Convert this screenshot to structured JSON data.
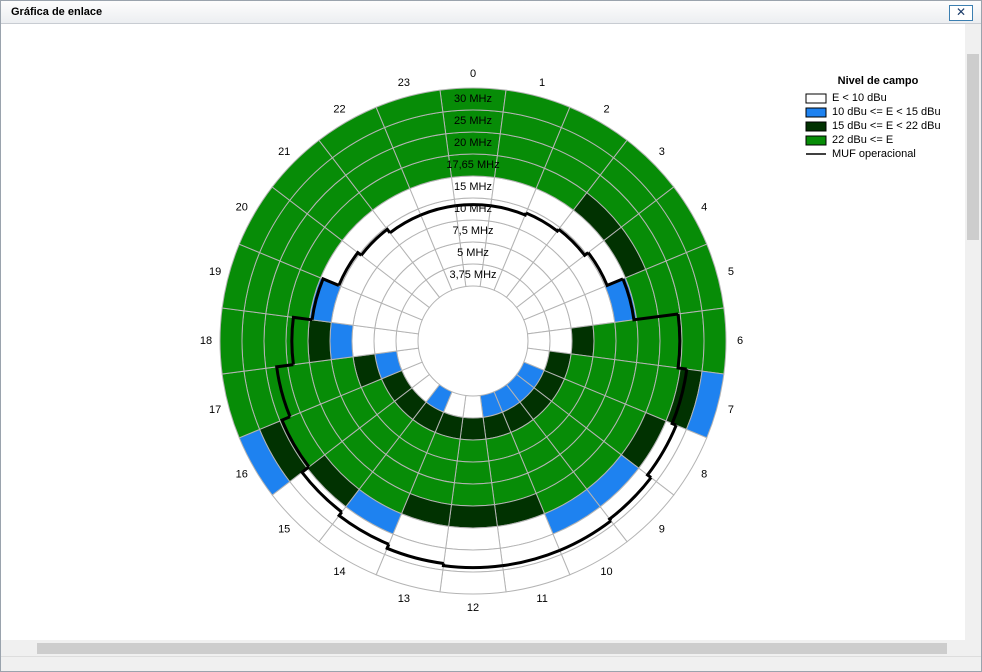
{
  "window": {
    "title": "Gráfica de enlace"
  },
  "chart_data": {
    "type": "polar-grid",
    "categories": [
      "0",
      "1",
      "2",
      "3",
      "4",
      "5",
      "6",
      "7",
      "8",
      "9",
      "10",
      "11",
      "12",
      "13",
      "14",
      "15",
      "16",
      "17",
      "18",
      "19",
      "20",
      "21",
      "22",
      "23"
    ],
    "rings": [
      {
        "value": 3.75,
        "label": "3,75 MHz"
      },
      {
        "value": 5,
        "label": "5 MHz"
      },
      {
        "value": 7.5,
        "label": "7,5 MHz"
      },
      {
        "value": 10,
        "label": "10 MHz"
      },
      {
        "value": 15,
        "label": "15 MHz"
      },
      {
        "value": 17.65,
        "label": "17,65 MHz"
      },
      {
        "value": 20,
        "label": "20 MHz"
      },
      {
        "value": 25,
        "label": "25 MHz"
      },
      {
        "value": 30,
        "label": "30 MHz"
      }
    ],
    "legend": {
      "title": "Nivel de campo",
      "levels": [
        {
          "label": "E < 10 dBu",
          "color": "#ffffff"
        },
        {
          "label": "10 dBu <= E < 15 dBu",
          "color": "#1e82f0"
        },
        {
          "label": "15 dBu <= E < 22 dBu",
          "color": "#013201"
        },
        {
          "label": "22 dBu <= E",
          "color": "#078c07"
        }
      ],
      "muf": {
        "label": "MUF operacional",
        "color": "#000000"
      }
    },
    "levels": [
      [
        0,
        0,
        0,
        0,
        0,
        3,
        3,
        3,
        3
      ],
      [
        0,
        0,
        0,
        0,
        0,
        3,
        3,
        3,
        3
      ],
      [
        0,
        0,
        0,
        0,
        0,
        3,
        3,
        3,
        3
      ],
      [
        0,
        0,
        0,
        0,
        0,
        2,
        3,
        3,
        3
      ],
      [
        0,
        0,
        0,
        0,
        0,
        2,
        3,
        3,
        3
      ],
      [
        0,
        0,
        0,
        0,
        1,
        3,
        3,
        3,
        3
      ],
      [
        0,
        0,
        2,
        3,
        3,
        3,
        3,
        3,
        3
      ],
      [
        0,
        2,
        3,
        3,
        3,
        3,
        3,
        2,
        1
      ],
      [
        1,
        2,
        3,
        3,
        3,
        3,
        2,
        0,
        0
      ],
      [
        1,
        2,
        3,
        3,
        3,
        3,
        1,
        0,
        0
      ],
      [
        1,
        2,
        3,
        3,
        3,
        3,
        1,
        0,
        0
      ],
      [
        1,
        2,
        3,
        3,
        3,
        2,
        0,
        0,
        0
      ],
      [
        0,
        2,
        3,
        3,
        3,
        2,
        0,
        0,
        0
      ],
      [
        0,
        2,
        3,
        3,
        3,
        2,
        0,
        0,
        0
      ],
      [
        1,
        2,
        3,
        3,
        3,
        3,
        1,
        0,
        0
      ],
      [
        0,
        2,
        3,
        3,
        3,
        3,
        2,
        0,
        0
      ],
      [
        0,
        2,
        3,
        3,
        3,
        3,
        3,
        2,
        1
      ],
      [
        0,
        1,
        2,
        3,
        3,
        3,
        3,
        3,
        3
      ],
      [
        0,
        0,
        0,
        1,
        2,
        3,
        3,
        3,
        3
      ],
      [
        0,
        0,
        0,
        0,
        1,
        3,
        3,
        3,
        3
      ],
      [
        0,
        0,
        0,
        0,
        0,
        3,
        3,
        3,
        3
      ],
      [
        0,
        0,
        0,
        0,
        0,
        3,
        3,
        3,
        3
      ],
      [
        0,
        0,
        0,
        0,
        0,
        3,
        3,
        3,
        3
      ],
      [
        0,
        0,
        0,
        0,
        0,
        3,
        3,
        3,
        3
      ]
    ],
    "muf": [
      11,
      11,
      11.5,
      12,
      13,
      16,
      22,
      24,
      25,
      26,
      26.5,
      26.5,
      26.5,
      26,
      25,
      24,
      22,
      20,
      18.2,
      16,
      13,
      12,
      11,
      11
    ]
  }
}
